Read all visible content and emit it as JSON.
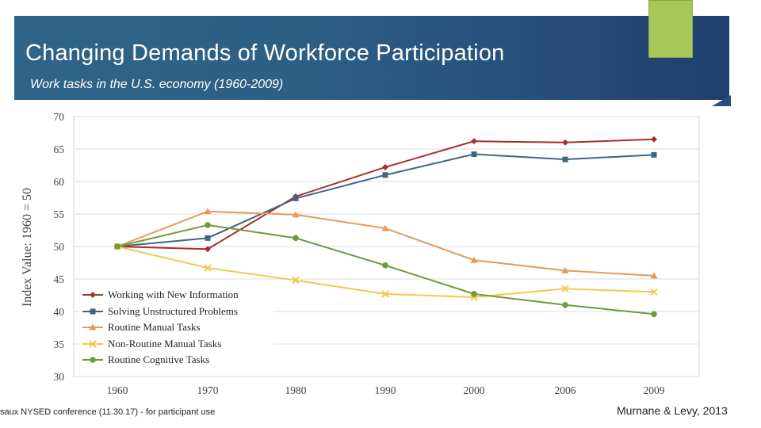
{
  "slide": {
    "title": "Changing Demands of Workforce Participation",
    "subtitle": "Work tasks in the U.S. economy (1960-2009)",
    "footer_left": "saux NYSED conference (11.30.17) -  for participant use",
    "footer_right": "Murnane & Levy, 2013",
    "colors": {
      "banner": "#2d5f85",
      "accent": "#a6c75a"
    }
  },
  "chart_data": {
    "type": "line",
    "title": "",
    "xlabel": "",
    "ylabel": "Index Value: 1960 = 50",
    "categories": [
      "1960",
      "1970",
      "1980",
      "1990",
      "2000",
      "2006",
      "2009"
    ],
    "ylim": [
      30,
      70
    ],
    "yticks": [
      30,
      35,
      40,
      45,
      50,
      55,
      60,
      65,
      70
    ],
    "grid": true,
    "legend_position": "bottom-left",
    "series": [
      {
        "name": "Working with New Information",
        "color": "#a6302a",
        "marker": "diamond",
        "values": [
          50,
          49.6,
          57.7,
          62.2,
          66.2,
          66.0,
          66.5
        ]
      },
      {
        "name": "Solving Unstructured Problems",
        "color": "#41657f",
        "marker": "square",
        "values": [
          50,
          51.3,
          57.4,
          61.0,
          64.2,
          63.4,
          64.1
        ]
      },
      {
        "name": "Routine Manual Tasks",
        "color": "#e59a5a",
        "marker": "triangle",
        "values": [
          50,
          55.4,
          54.9,
          52.8,
          47.9,
          46.3,
          45.5
        ]
      },
      {
        "name": "Non-Routine Manual Tasks",
        "color": "#f4c750",
        "marker": "x",
        "values": [
          50,
          46.7,
          44.8,
          42.7,
          42.2,
          43.5,
          43.0
        ]
      },
      {
        "name": "Routine Cognitive Tasks",
        "color": "#6e9a3a",
        "marker": "circle",
        "values": [
          50,
          53.3,
          51.3,
          47.1,
          42.7,
          41.0,
          39.6
        ]
      }
    ]
  }
}
